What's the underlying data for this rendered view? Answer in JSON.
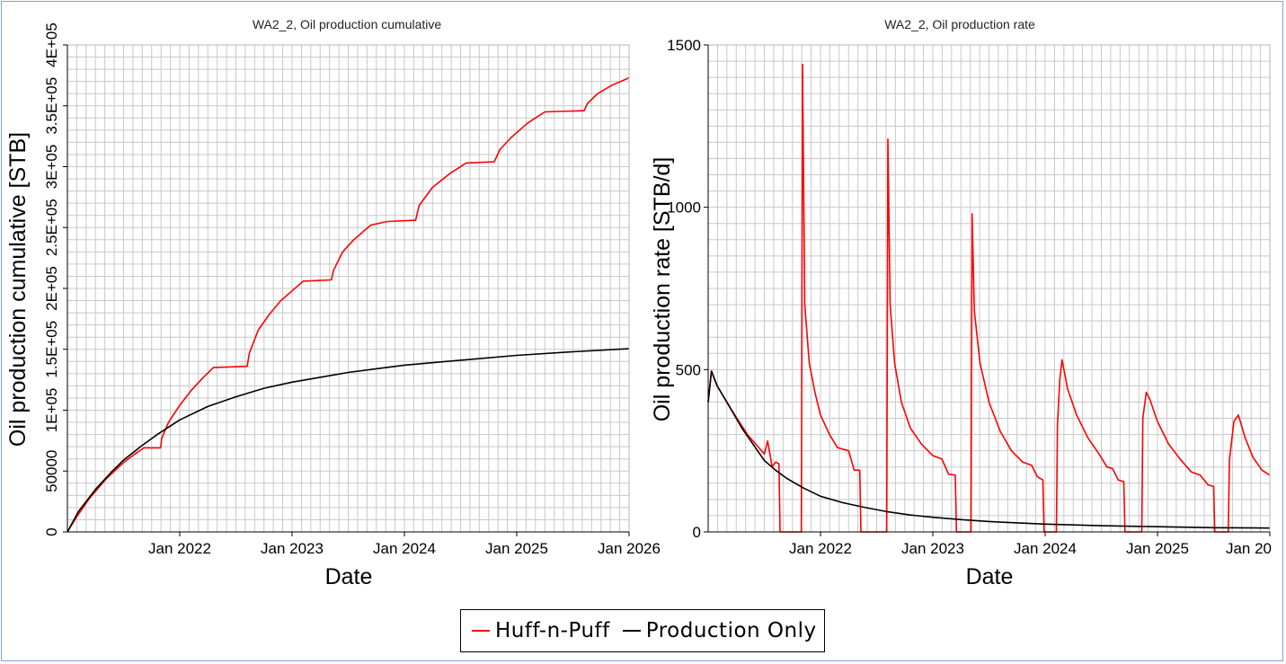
{
  "colors": {
    "huff": "#ff0000",
    "prod": "#000000",
    "grid": "#c8c8c8",
    "border": "#7ea6d8"
  },
  "legend": {
    "items": [
      {
        "label": "Huff-n-Puff",
        "color": "#ff0000"
      },
      {
        "label": "Production Only",
        "color": "#000000"
      }
    ]
  },
  "chart_data": [
    {
      "type": "line",
      "title": "WA2_2, Oil production cumulative",
      "xlabel": "Date",
      "ylabel": "Oil production cumulative [STB]",
      "xlim": [
        2021.0,
        2026.0
      ],
      "ylim": [
        0,
        400000
      ],
      "x_ticks": [
        {
          "value": 2022.0,
          "label": "Jan 2022"
        },
        {
          "value": 2023.0,
          "label": "Jan 2023"
        },
        {
          "value": 2024.0,
          "label": "Jan 2024"
        },
        {
          "value": 2025.0,
          "label": "Jan 2025"
        },
        {
          "value": 2026.0,
          "label": "Jan 2026"
        }
      ],
      "y_ticks": [
        {
          "value": 0,
          "label": "0"
        },
        {
          "value": 50000,
          "label": "50000"
        },
        {
          "value": 100000,
          "label": "1E+05"
        },
        {
          "value": 150000,
          "label": "1.5E+05"
        },
        {
          "value": 200000,
          "label": "2E+05"
        },
        {
          "value": 250000,
          "label": "2.5E+05"
        },
        {
          "value": 300000,
          "label": "3E+05"
        },
        {
          "value": 350000,
          "label": "3.5E+05"
        },
        {
          "value": 400000,
          "label": "4E+05"
        }
      ],
      "grid": true,
      "series": [
        {
          "name": "Huff-n-Puff",
          "color": "#ff0000",
          "points": [
            [
              2021.0,
              0
            ],
            [
              2021.08,
              12000
            ],
            [
              2021.2,
              28000
            ],
            [
              2021.35,
              44000
            ],
            [
              2021.5,
              57000
            ],
            [
              2021.6,
              64000
            ],
            [
              2021.68,
              69000
            ],
            [
              2021.83,
              69000
            ],
            [
              2021.84,
              77000
            ],
            [
              2021.9,
              90000
            ],
            [
              2022.0,
              104000
            ],
            [
              2022.1,
              116000
            ],
            [
              2022.2,
              126000
            ],
            [
              2022.3,
              135000
            ],
            [
              2022.6,
              136000
            ],
            [
              2022.62,
              147000
            ],
            [
              2022.7,
              166000
            ],
            [
              2022.8,
              179000
            ],
            [
              2022.9,
              190000
            ],
            [
              2023.0,
              198000
            ],
            [
              2023.1,
              206000
            ],
            [
              2023.35,
              207000
            ],
            [
              2023.37,
              215000
            ],
            [
              2023.45,
              230000
            ],
            [
              2023.55,
              240000
            ],
            [
              2023.7,
              252000
            ],
            [
              2023.85,
              255000
            ],
            [
              2024.1,
              256000
            ],
            [
              2024.13,
              268000
            ],
            [
              2024.25,
              283000
            ],
            [
              2024.4,
              294000
            ],
            [
              2024.55,
              303000
            ],
            [
              2024.8,
              304000
            ],
            [
              2024.85,
              314000
            ],
            [
              2024.95,
              324000
            ],
            [
              2025.1,
              336000
            ],
            [
              2025.25,
              345000
            ],
            [
              2025.6,
              346000
            ],
            [
              2025.63,
              352000
            ],
            [
              2025.72,
              360000
            ],
            [
              2025.85,
              367000
            ],
            [
              2026.0,
              373000
            ]
          ]
        },
        {
          "name": "Production Only",
          "color": "#000000",
          "points": [
            [
              2021.0,
              0
            ],
            [
              2021.1,
              17000
            ],
            [
              2021.25,
              35000
            ],
            [
              2021.4,
              50000
            ],
            [
              2021.5,
              59000
            ],
            [
              2021.65,
              70000
            ],
            [
              2021.8,
              80000
            ],
            [
              2022.0,
              92000
            ],
            [
              2022.25,
              103000
            ],
            [
              2022.5,
              111000
            ],
            [
              2022.75,
              118000
            ],
            [
              2023.0,
              123000
            ],
            [
              2023.25,
              127000
            ],
            [
              2023.5,
              131000
            ],
            [
              2023.75,
              134000
            ],
            [
              2024.0,
              137000
            ],
            [
              2024.5,
              141000
            ],
            [
              2025.0,
              145000
            ],
            [
              2025.5,
              148000
            ],
            [
              2026.0,
              150500
            ]
          ]
        }
      ]
    },
    {
      "type": "line",
      "title": "WA2_2, Oil production rate",
      "xlabel": "Date",
      "ylabel": "Oil production rate [STB/d]",
      "xlim": [
        2021.0,
        2026.0
      ],
      "ylim": [
        0,
        1500
      ],
      "x_ticks": [
        {
          "value": 2022.0,
          "label": "Jan 2022"
        },
        {
          "value": 2023.0,
          "label": "Jan 2023"
        },
        {
          "value": 2024.0,
          "label": "Jan 2024"
        },
        {
          "value": 2025.0,
          "label": "Jan 2025"
        },
        {
          "value": 2026.0,
          "label": "Jan 20"
        }
      ],
      "y_ticks": [
        {
          "value": 0,
          "label": "0"
        },
        {
          "value": 500,
          "label": "500"
        },
        {
          "value": 1000,
          "label": "1000"
        },
        {
          "value": 1500,
          "label": "1500"
        }
      ],
      "grid": true,
      "series": [
        {
          "name": "Huff-n-Puff",
          "color": "#ff0000",
          "points": [
            [
              2021.0,
              400
            ],
            [
              2021.03,
              495
            ],
            [
              2021.08,
              450
            ],
            [
              2021.2,
              380
            ],
            [
              2021.35,
              300
            ],
            [
              2021.45,
              260
            ],
            [
              2021.5,
              240
            ],
            [
              2021.53,
              280
            ],
            [
              2021.57,
              200
            ],
            [
              2021.6,
              215
            ],
            [
              2021.63,
              210
            ],
            [
              2021.64,
              0
            ],
            [
              2021.83,
              0
            ],
            [
              2021.84,
              1440
            ],
            [
              2021.86,
              700
            ],
            [
              2021.9,
              520
            ],
            [
              2021.95,
              430
            ],
            [
              2022.0,
              360
            ],
            [
              2022.08,
              300
            ],
            [
              2022.15,
              260
            ],
            [
              2022.25,
              250
            ],
            [
              2022.3,
              190
            ],
            [
              2022.35,
              190
            ],
            [
              2022.36,
              0
            ],
            [
              2022.59,
              0
            ],
            [
              2022.6,
              1210
            ],
            [
              2022.62,
              700
            ],
            [
              2022.66,
              520
            ],
            [
              2022.72,
              400
            ],
            [
              2022.8,
              320
            ],
            [
              2022.9,
              270
            ],
            [
              2023.0,
              235
            ],
            [
              2023.08,
              225
            ],
            [
              2023.14,
              178
            ],
            [
              2023.2,
              175
            ],
            [
              2023.21,
              0
            ],
            [
              2023.34,
              0
            ],
            [
              2023.35,
              980
            ],
            [
              2023.37,
              680
            ],
            [
              2023.42,
              520
            ],
            [
              2023.5,
              400
            ],
            [
              2023.6,
              310
            ],
            [
              2023.7,
              250
            ],
            [
              2023.8,
              215
            ],
            [
              2023.88,
              205
            ],
            [
              2023.93,
              170
            ],
            [
              2023.98,
              160
            ],
            [
              2023.99,
              0
            ],
            [
              2024.1,
              0
            ],
            [
              2024.11,
              330
            ],
            [
              2024.13,
              470
            ],
            [
              2024.15,
              530
            ],
            [
              2024.2,
              440
            ],
            [
              2024.28,
              360
            ],
            [
              2024.38,
              290
            ],
            [
              2024.48,
              240
            ],
            [
              2024.55,
              200
            ],
            [
              2024.6,
              195
            ],
            [
              2024.65,
              160
            ],
            [
              2024.7,
              155
            ],
            [
              2024.71,
              0
            ],
            [
              2024.86,
              0
            ],
            [
              2024.87,
              350
            ],
            [
              2024.9,
              430
            ],
            [
              2024.93,
              410
            ],
            [
              2025.0,
              340
            ],
            [
              2025.1,
              270
            ],
            [
              2025.2,
              225
            ],
            [
              2025.3,
              185
            ],
            [
              2025.38,
              175
            ],
            [
              2025.45,
              145
            ],
            [
              2025.5,
              140
            ],
            [
              2025.51,
              0
            ],
            [
              2025.63,
              0
            ],
            [
              2025.64,
              220
            ],
            [
              2025.68,
              340
            ],
            [
              2025.72,
              360
            ],
            [
              2025.78,
              290
            ],
            [
              2025.85,
              230
            ],
            [
              2025.93,
              190
            ],
            [
              2026.0,
              175
            ]
          ]
        },
        {
          "name": "Production Only",
          "color": "#000000",
          "points": [
            [
              2021.0,
              400
            ],
            [
              2021.03,
              495
            ],
            [
              2021.08,
              450
            ],
            [
              2021.2,
              380
            ],
            [
              2021.3,
              320
            ],
            [
              2021.4,
              270
            ],
            [
              2021.5,
              220
            ],
            [
              2021.6,
              190
            ],
            [
              2021.7,
              165
            ],
            [
              2021.85,
              135
            ],
            [
              2022.0,
              110
            ],
            [
              2022.2,
              90
            ],
            [
              2022.4,
              75
            ],
            [
              2022.6,
              62
            ],
            [
              2022.8,
              52
            ],
            [
              2023.0,
              45
            ],
            [
              2023.25,
              38
            ],
            [
              2023.5,
              32
            ],
            [
              2023.75,
              28
            ],
            [
              2024.0,
              24
            ],
            [
              2024.5,
              19
            ],
            [
              2025.0,
              16
            ],
            [
              2025.5,
              13
            ],
            [
              2026.0,
              12
            ]
          ]
        }
      ]
    }
  ]
}
